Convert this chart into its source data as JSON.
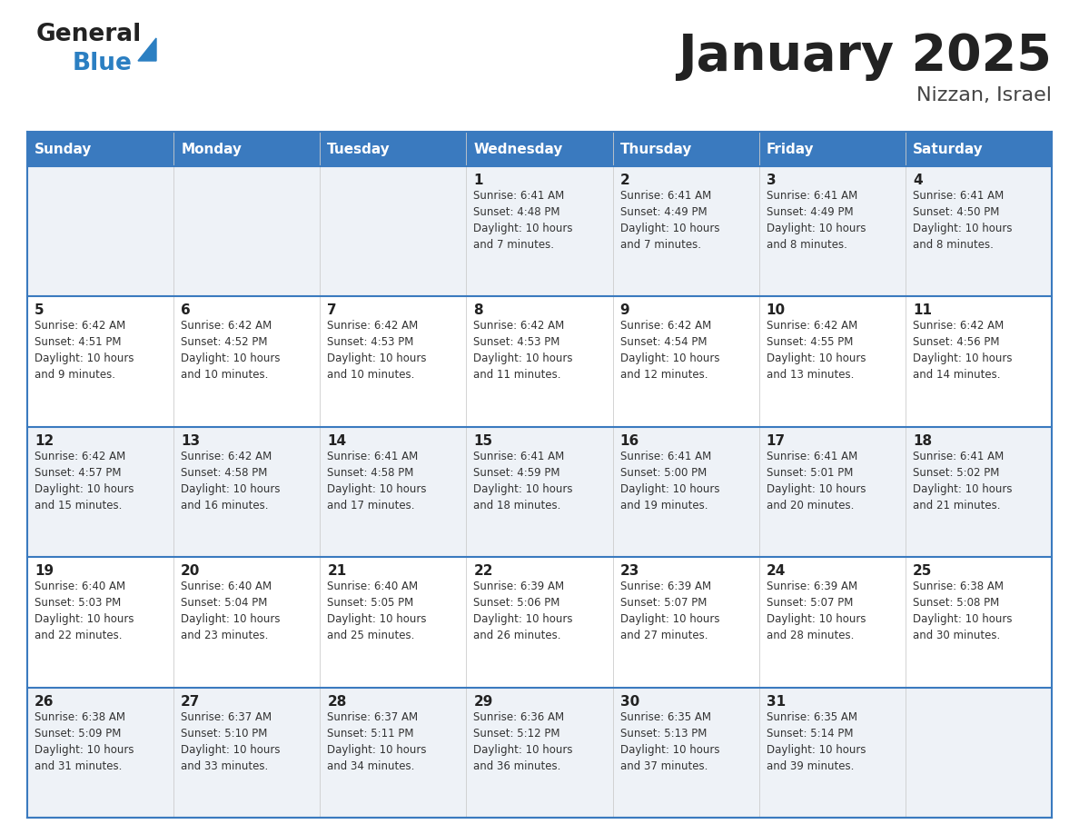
{
  "title": "January 2025",
  "subtitle": "Nizzan, Israel",
  "header_bg": "#3a7abf",
  "header_text_color": "#ffffff",
  "row_bg_odd": "#eef2f7",
  "row_bg_even": "#ffffff",
  "border_color": "#3a7abf",
  "separator_color": "#3a7abf",
  "cell_line_color": "#cccccc",
  "day_names": [
    "Sunday",
    "Monday",
    "Tuesday",
    "Wednesday",
    "Thursday",
    "Friday",
    "Saturday"
  ],
  "days": [
    {
      "day": 1,
      "col": 3,
      "row": 0,
      "sunrise": "6:41 AM",
      "sunset": "4:48 PM",
      "daylight": "10 hours\nand 7 minutes."
    },
    {
      "day": 2,
      "col": 4,
      "row": 0,
      "sunrise": "6:41 AM",
      "sunset": "4:49 PM",
      "daylight": "10 hours\nand 7 minutes."
    },
    {
      "day": 3,
      "col": 5,
      "row": 0,
      "sunrise": "6:41 AM",
      "sunset": "4:49 PM",
      "daylight": "10 hours\nand 8 minutes."
    },
    {
      "day": 4,
      "col": 6,
      "row": 0,
      "sunrise": "6:41 AM",
      "sunset": "4:50 PM",
      "daylight": "10 hours\nand 8 minutes."
    },
    {
      "day": 5,
      "col": 0,
      "row": 1,
      "sunrise": "6:42 AM",
      "sunset": "4:51 PM",
      "daylight": "10 hours\nand 9 minutes."
    },
    {
      "day": 6,
      "col": 1,
      "row": 1,
      "sunrise": "6:42 AM",
      "sunset": "4:52 PM",
      "daylight": "10 hours\nand 10 minutes."
    },
    {
      "day": 7,
      "col": 2,
      "row": 1,
      "sunrise": "6:42 AM",
      "sunset": "4:53 PM",
      "daylight": "10 hours\nand 10 minutes."
    },
    {
      "day": 8,
      "col": 3,
      "row": 1,
      "sunrise": "6:42 AM",
      "sunset": "4:53 PM",
      "daylight": "10 hours\nand 11 minutes."
    },
    {
      "day": 9,
      "col": 4,
      "row": 1,
      "sunrise": "6:42 AM",
      "sunset": "4:54 PM",
      "daylight": "10 hours\nand 12 minutes."
    },
    {
      "day": 10,
      "col": 5,
      "row": 1,
      "sunrise": "6:42 AM",
      "sunset": "4:55 PM",
      "daylight": "10 hours\nand 13 minutes."
    },
    {
      "day": 11,
      "col": 6,
      "row": 1,
      "sunrise": "6:42 AM",
      "sunset": "4:56 PM",
      "daylight": "10 hours\nand 14 minutes."
    },
    {
      "day": 12,
      "col": 0,
      "row": 2,
      "sunrise": "6:42 AM",
      "sunset": "4:57 PM",
      "daylight": "10 hours\nand 15 minutes."
    },
    {
      "day": 13,
      "col": 1,
      "row": 2,
      "sunrise": "6:42 AM",
      "sunset": "4:58 PM",
      "daylight": "10 hours\nand 16 minutes."
    },
    {
      "day": 14,
      "col": 2,
      "row": 2,
      "sunrise": "6:41 AM",
      "sunset": "4:58 PM",
      "daylight": "10 hours\nand 17 minutes."
    },
    {
      "day": 15,
      "col": 3,
      "row": 2,
      "sunrise": "6:41 AM",
      "sunset": "4:59 PM",
      "daylight": "10 hours\nand 18 minutes."
    },
    {
      "day": 16,
      "col": 4,
      "row": 2,
      "sunrise": "6:41 AM",
      "sunset": "5:00 PM",
      "daylight": "10 hours\nand 19 minutes."
    },
    {
      "day": 17,
      "col": 5,
      "row": 2,
      "sunrise": "6:41 AM",
      "sunset": "5:01 PM",
      "daylight": "10 hours\nand 20 minutes."
    },
    {
      "day": 18,
      "col": 6,
      "row": 2,
      "sunrise": "6:41 AM",
      "sunset": "5:02 PM",
      "daylight": "10 hours\nand 21 minutes."
    },
    {
      "day": 19,
      "col": 0,
      "row": 3,
      "sunrise": "6:40 AM",
      "sunset": "5:03 PM",
      "daylight": "10 hours\nand 22 minutes."
    },
    {
      "day": 20,
      "col": 1,
      "row": 3,
      "sunrise": "6:40 AM",
      "sunset": "5:04 PM",
      "daylight": "10 hours\nand 23 minutes."
    },
    {
      "day": 21,
      "col": 2,
      "row": 3,
      "sunrise": "6:40 AM",
      "sunset": "5:05 PM",
      "daylight": "10 hours\nand 25 minutes."
    },
    {
      "day": 22,
      "col": 3,
      "row": 3,
      "sunrise": "6:39 AM",
      "sunset": "5:06 PM",
      "daylight": "10 hours\nand 26 minutes."
    },
    {
      "day": 23,
      "col": 4,
      "row": 3,
      "sunrise": "6:39 AM",
      "sunset": "5:07 PM",
      "daylight": "10 hours\nand 27 minutes."
    },
    {
      "day": 24,
      "col": 5,
      "row": 3,
      "sunrise": "6:39 AM",
      "sunset": "5:07 PM",
      "daylight": "10 hours\nand 28 minutes."
    },
    {
      "day": 25,
      "col": 6,
      "row": 3,
      "sunrise": "6:38 AM",
      "sunset": "5:08 PM",
      "daylight": "10 hours\nand 30 minutes."
    },
    {
      "day": 26,
      "col": 0,
      "row": 4,
      "sunrise": "6:38 AM",
      "sunset": "5:09 PM",
      "daylight": "10 hours\nand 31 minutes."
    },
    {
      "day": 27,
      "col": 1,
      "row": 4,
      "sunrise": "6:37 AM",
      "sunset": "5:10 PM",
      "daylight": "10 hours\nand 33 minutes."
    },
    {
      "day": 28,
      "col": 2,
      "row": 4,
      "sunrise": "6:37 AM",
      "sunset": "5:11 PM",
      "daylight": "10 hours\nand 34 minutes."
    },
    {
      "day": 29,
      "col": 3,
      "row": 4,
      "sunrise": "6:36 AM",
      "sunset": "5:12 PM",
      "daylight": "10 hours\nand 36 minutes."
    },
    {
      "day": 30,
      "col": 4,
      "row": 4,
      "sunrise": "6:35 AM",
      "sunset": "5:13 PM",
      "daylight": "10 hours\nand 37 minutes."
    },
    {
      "day": 31,
      "col": 5,
      "row": 4,
      "sunrise": "6:35 AM",
      "sunset": "5:14 PM",
      "daylight": "10 hours\nand 39 minutes."
    }
  ],
  "n_rows": 5,
  "logo_general_color": "#222222",
  "logo_blue_color": "#2b7fc2",
  "logo_triangle_color": "#2b7fc2",
  "title_color": "#222222",
  "subtitle_color": "#444444"
}
